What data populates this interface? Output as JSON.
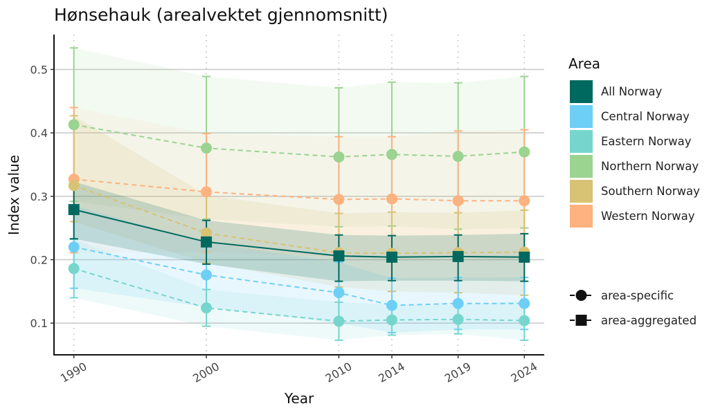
{
  "chart_data": {
    "type": "line",
    "title": "Hønsehauk (arealvektet gjennomsnitt)",
    "xlabel": "Year",
    "ylabel": "Index value",
    "x": [
      1990,
      2000,
      2010,
      2014,
      2019,
      2024
    ],
    "x_tick_labels": [
      "1990",
      "2000",
      "2010",
      "2014",
      "2019",
      "2024"
    ],
    "y_ticks": [
      0.1,
      0.2,
      0.3,
      0.4,
      0.5
    ],
    "y_tick_labels": [
      "0.1",
      "0.2",
      "0.3",
      "0.4",
      "0.5"
    ],
    "ylim": [
      0.05,
      0.555
    ],
    "grid": "horizontal major lines; dotted vertical lines at data years",
    "legend_placement": "right",
    "legend_title": "Area",
    "series": [
      {
        "name": "All Norway",
        "color": "#00695f",
        "kind": "area-aggregated",
        "values": [
          0.279,
          0.228,
          0.206,
          0.204,
          0.205,
          0.204
        ],
        "lower": [
          0.233,
          0.193,
          0.166,
          0.167,
          0.167,
          0.166
        ],
        "upper": [
          0.323,
          0.262,
          0.239,
          0.238,
          0.239,
          0.241
        ]
      },
      {
        "name": "Central Norway",
        "color": "#6dcff6",
        "kind": "area-specific",
        "values": [
          0.22,
          0.176,
          0.148,
          0.128,
          0.131,
          0.131
        ],
        "lower": [
          0.155,
          0.125,
          0.1,
          0.085,
          0.09,
          0.09
        ],
        "upper": [
          0.285,
          0.227,
          0.196,
          0.171,
          0.172,
          0.172
        ]
      },
      {
        "name": "Eastern Norway",
        "color": "#76d6cd",
        "kind": "area-specific",
        "values": [
          0.186,
          0.124,
          0.103,
          0.105,
          0.106,
          0.104
        ],
        "lower": [
          0.14,
          0.095,
          0.073,
          0.081,
          0.083,
          0.073
        ],
        "upper": [
          0.232,
          0.153,
          0.133,
          0.129,
          0.129,
          0.135
        ]
      },
      {
        "name": "Northern Norway",
        "color": "#9bd391",
        "kind": "area-specific",
        "values": [
          0.413,
          0.376,
          0.362,
          0.366,
          0.363,
          0.37
        ],
        "lower": [
          0.292,
          0.264,
          0.252,
          0.253,
          0.248,
          0.25
        ],
        "upper": [
          0.534,
          0.489,
          0.471,
          0.48,
          0.479,
          0.489
        ]
      },
      {
        "name": "Southern Norway",
        "color": "#d8c273",
        "kind": "area-specific",
        "values": [
          0.317,
          0.242,
          0.211,
          0.21,
          0.211,
          0.212
        ],
        "lower": [
          0.26,
          0.195,
          0.157,
          0.15,
          0.148,
          0.144
        ],
        "upper": [
          0.427,
          0.302,
          0.273,
          0.275,
          0.274,
          0.278
        ]
      },
      {
        "name": "Western Norway",
        "color": "#fdb27f",
        "kind": "area-specific",
        "values": [
          0.327,
          0.307,
          0.295,
          0.296,
          0.293,
          0.293
        ],
        "lower": [
          0.211,
          0.212,
          0.204,
          0.205,
          0.203,
          0.2
        ],
        "upper": [
          0.44,
          0.399,
          0.394,
          0.394,
          0.403,
          0.405
        ]
      }
    ],
    "shape_legend": [
      {
        "label": "area-specific",
        "shape": "circle"
      },
      {
        "label": "area-aggregated",
        "shape": "square"
      }
    ]
  }
}
